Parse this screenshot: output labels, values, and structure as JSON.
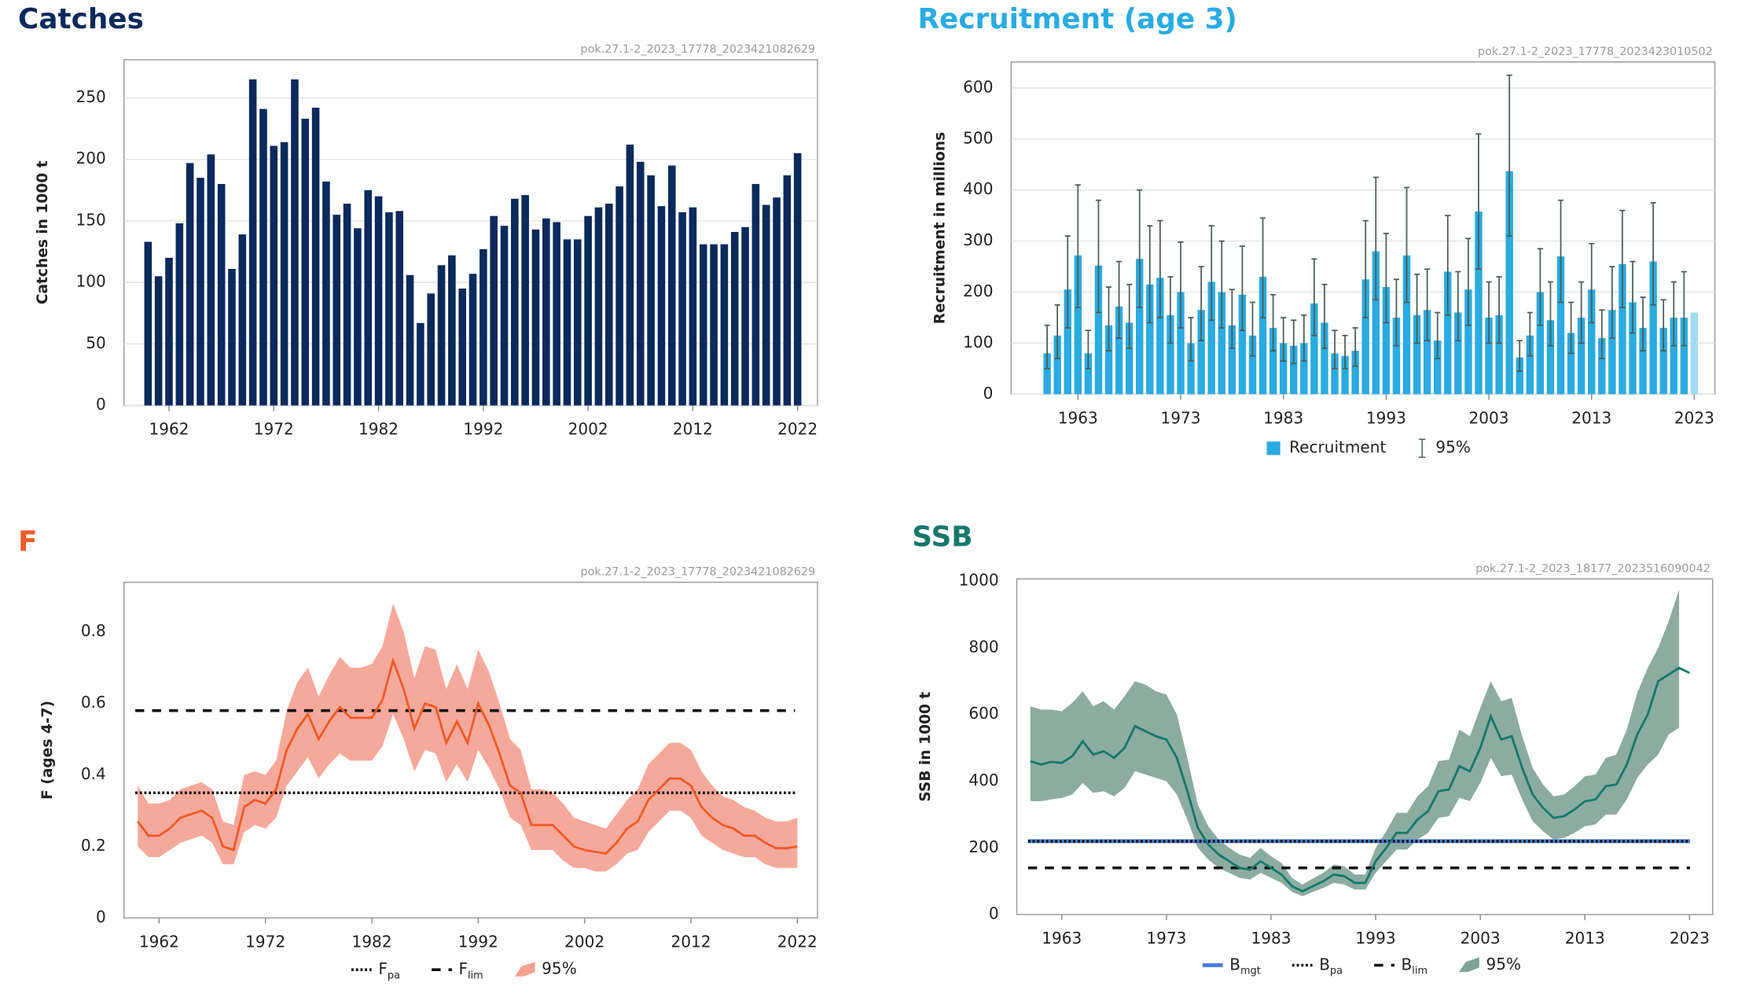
{
  "chart_data": [
    {
      "type": "bar",
      "title": "Catches",
      "title_color": "#0b2a5c",
      "subtitle": "pok.27.1-2_2023_17778_2023421082629",
      "ylabel": "Catches in 1000 t",
      "color": "#0b2a5c",
      "grid": true,
      "x": [
        1960,
        1961,
        1962,
        1963,
        1964,
        1965,
        1966,
        1967,
        1968,
        1969,
        1970,
        1971,
        1972,
        1973,
        1974,
        1975,
        1976,
        1977,
        1978,
        1979,
        1980,
        1981,
        1982,
        1983,
        1984,
        1985,
        1986,
        1987,
        1988,
        1989,
        1990,
        1991,
        1992,
        1993,
        1994,
        1995,
        1996,
        1997,
        1998,
        1999,
        2000,
        2001,
        2002,
        2003,
        2004,
        2005,
        2006,
        2007,
        2008,
        2009,
        2010,
        2011,
        2012,
        2013,
        2014,
        2015,
        2016,
        2017,
        2018,
        2019,
        2020,
        2021,
        2022
      ],
      "values": [
        133,
        105,
        120,
        148,
        197,
        185,
        204,
        180,
        111,
        139,
        265,
        241,
        211,
        214,
        265,
        233,
        242,
        182,
        155,
        164,
        144,
        175,
        170,
        157,
        158,
        106,
        67,
        91,
        114,
        122,
        95,
        107,
        127,
        154,
        146,
        168,
        171,
        143,
        152,
        149,
        135,
        135,
        154,
        161,
        164,
        178,
        212,
        198,
        187,
        162,
        195,
        157,
        161,
        131,
        131,
        131,
        141,
        145,
        180,
        163,
        169,
        187,
        205
      ],
      "xlim": [
        1957.7,
        2023.9
      ],
      "xticks": [
        1962,
        1972,
        1982,
        1992,
        2002,
        2012,
        2022
      ],
      "ylim": [
        0,
        281
      ],
      "yticks": [
        0,
        50,
        100,
        150,
        200,
        250
      ]
    },
    {
      "type": "bar",
      "title": "Recruitment (age 3)",
      "title_color": "#2aabe2",
      "subtitle": "pok.27.1-2_2023_17778_2023423010502",
      "ylabel": "Recruitment in millions",
      "color": "#2aabe2",
      "forecast_color": "#a3daf3",
      "error_color": "#4a5a52",
      "grid": true,
      "value_name": "Recruitment",
      "error_name": "95%",
      "x": [
        1960,
        1961,
        1962,
        1963,
        1964,
        1965,
        1966,
        1967,
        1968,
        1969,
        1970,
        1971,
        1972,
        1973,
        1974,
        1975,
        1976,
        1977,
        1978,
        1979,
        1980,
        1981,
        1982,
        1983,
        1984,
        1985,
        1986,
        1987,
        1988,
        1989,
        1990,
        1991,
        1992,
        1993,
        1994,
        1995,
        1996,
        1997,
        1998,
        1999,
        2000,
        2001,
        2002,
        2003,
        2004,
        2005,
        2006,
        2007,
        2008,
        2009,
        2010,
        2011,
        2012,
        2013,
        2014,
        2015,
        2016,
        2017,
        2018,
        2019,
        2020,
        2021,
        2022,
        2023
      ],
      "values": [
        80,
        115,
        205,
        272,
        80,
        252,
        135,
        172,
        140,
        265,
        215,
        228,
        155,
        200,
        100,
        165,
        220,
        200,
        135,
        195,
        115,
        230,
        130,
        100,
        95,
        100,
        178,
        140,
        80,
        75,
        85,
        225,
        280,
        210,
        150,
        272,
        155,
        165,
        105,
        240,
        160,
        205,
        358,
        150,
        155,
        437,
        72,
        115,
        200,
        145,
        270,
        120,
        150,
        205,
        110,
        165,
        255,
        180,
        130,
        260,
        130,
        150,
        150,
        160
      ],
      "lower": [
        50,
        70,
        130,
        170,
        50,
        160,
        85,
        110,
        90,
        170,
        140,
        150,
        100,
        130,
        65,
        105,
        145,
        130,
        90,
        125,
        75,
        150,
        85,
        65,
        60,
        65,
        115,
        90,
        50,
        50,
        55,
        150,
        185,
        140,
        95,
        180,
        100,
        105,
        70,
        155,
        105,
        135,
        245,
        100,
        100,
        310,
        45,
        75,
        135,
        95,
        180,
        80,
        100,
        140,
        70,
        110,
        170,
        120,
        85,
        175,
        85,
        95,
        95,
        null
      ],
      "upper": [
        135,
        175,
        310,
        410,
        125,
        380,
        210,
        260,
        215,
        400,
        330,
        340,
        230,
        298,
        150,
        250,
        330,
        300,
        205,
        290,
        180,
        345,
        195,
        150,
        145,
        155,
        265,
        215,
        125,
        115,
        130,
        340,
        425,
        315,
        225,
        405,
        235,
        245,
        160,
        350,
        240,
        305,
        510,
        220,
        230,
        625,
        105,
        160,
        285,
        220,
        380,
        180,
        220,
        295,
        165,
        250,
        360,
        260,
        190,
        375,
        185,
        220,
        240,
        null
      ],
      "xlim": [
        1956.5,
        2025
      ],
      "xticks": [
        1963,
        1973,
        1983,
        1993,
        2003,
        2013,
        2023
      ],
      "ylim": [
        0,
        651
      ],
      "yticks": [
        0,
        100,
        200,
        300,
        400,
        500,
        600
      ]
    },
    {
      "type": "line",
      "title": "F",
      "title_color": "#f05a28",
      "subtitle": "pok.27.1-2_2023_17778_2023421082629",
      "ylabel": "F (ages 4-7)",
      "color": "#f05a28",
      "band_color": "#f4a090",
      "band_name": "95%",
      "grid": false,
      "x": [
        1960,
        1961,
        1962,
        1963,
        1964,
        1965,
        1966,
        1967,
        1968,
        1969,
        1970,
        1971,
        1972,
        1973,
        1974,
        1975,
        1976,
        1977,
        1978,
        1979,
        1980,
        1981,
        1982,
        1983,
        1984,
        1985,
        1986,
        1987,
        1988,
        1989,
        1990,
        1991,
        1992,
        1993,
        1994,
        1995,
        1996,
        1997,
        1998,
        1999,
        2000,
        2001,
        2002,
        2003,
        2004,
        2005,
        2006,
        2007,
        2008,
        2009,
        2010,
        2011,
        2012,
        2013,
        2014,
        2015,
        2016,
        2017,
        2018,
        2019,
        2020,
        2021,
        2022
      ],
      "values": [
        0.27,
        0.23,
        0.23,
        0.25,
        0.28,
        0.29,
        0.3,
        0.28,
        0.2,
        0.19,
        0.31,
        0.33,
        0.32,
        0.36,
        0.47,
        0.53,
        0.57,
        0.5,
        0.55,
        0.59,
        0.56,
        0.56,
        0.56,
        0.61,
        0.72,
        0.64,
        0.53,
        0.6,
        0.59,
        0.49,
        0.55,
        0.49,
        0.6,
        0.54,
        0.46,
        0.37,
        0.35,
        0.26,
        0.26,
        0.26,
        0.23,
        0.2,
        0.19,
        0.185,
        0.18,
        0.21,
        0.25,
        0.27,
        0.33,
        0.36,
        0.39,
        0.39,
        0.37,
        0.31,
        0.28,
        0.26,
        0.25,
        0.23,
        0.23,
        0.21,
        0.195,
        0.195,
        0.2
      ],
      "lower": [
        0.2,
        0.17,
        0.17,
        0.19,
        0.21,
        0.22,
        0.23,
        0.21,
        0.15,
        0.15,
        0.24,
        0.26,
        0.25,
        0.28,
        0.37,
        0.41,
        0.45,
        0.39,
        0.43,
        0.46,
        0.44,
        0.44,
        0.44,
        0.48,
        0.57,
        0.5,
        0.41,
        0.47,
        0.46,
        0.38,
        0.43,
        0.38,
        0.47,
        0.42,
        0.36,
        0.28,
        0.26,
        0.19,
        0.19,
        0.19,
        0.16,
        0.14,
        0.14,
        0.13,
        0.13,
        0.15,
        0.18,
        0.19,
        0.24,
        0.27,
        0.3,
        0.3,
        0.28,
        0.23,
        0.21,
        0.19,
        0.18,
        0.17,
        0.17,
        0.15,
        0.14,
        0.14,
        0.14
      ],
      "upper": [
        0.37,
        0.32,
        0.32,
        0.33,
        0.36,
        0.37,
        0.38,
        0.36,
        0.27,
        0.26,
        0.4,
        0.41,
        0.4,
        0.44,
        0.58,
        0.66,
        0.7,
        0.62,
        0.68,
        0.73,
        0.7,
        0.7,
        0.71,
        0.76,
        0.88,
        0.8,
        0.67,
        0.76,
        0.75,
        0.64,
        0.71,
        0.64,
        0.75,
        0.69,
        0.6,
        0.5,
        0.47,
        0.36,
        0.36,
        0.35,
        0.32,
        0.28,
        0.27,
        0.26,
        0.25,
        0.29,
        0.33,
        0.36,
        0.43,
        0.46,
        0.49,
        0.49,
        0.47,
        0.41,
        0.37,
        0.34,
        0.33,
        0.31,
        0.3,
        0.28,
        0.27,
        0.27,
        0.28
      ],
      "reference_lines": [
        {
          "name": "F",
          "sub": "pa",
          "value": 0.35,
          "color": "#111111",
          "style": "dotted"
        },
        {
          "name": "F",
          "sub": "lim",
          "value": 0.58,
          "color": "#111111",
          "style": "dashed"
        }
      ],
      "xlim": [
        1958.7,
        2023.9
      ],
      "xticks": [
        1962,
        1972,
        1982,
        1992,
        2002,
        2012,
        2022
      ],
      "ylim": [
        0,
        0.939
      ],
      "yticks": [
        0,
        0.2,
        0.4,
        0.6,
        0.8
      ]
    },
    {
      "type": "line",
      "title": "SSB",
      "title_color": "#17786a",
      "subtitle": "pok.27.1-2_2023_18177_2023516090042",
      "ylabel": "SSB in 1000 t",
      "color": "#17786a",
      "band_color": "#7fa396",
      "band_name": "95%",
      "grid": false,
      "x": [
        1960,
        1961,
        1962,
        1963,
        1964,
        1965,
        1966,
        1967,
        1968,
        1969,
        1970,
        1971,
        1972,
        1973,
        1974,
        1975,
        1976,
        1977,
        1978,
        1979,
        1980,
        1981,
        1982,
        1983,
        1984,
        1985,
        1986,
        1987,
        1988,
        1989,
        1990,
        1991,
        1992,
        1993,
        1994,
        1995,
        1996,
        1997,
        1998,
        1999,
        2000,
        2001,
        2002,
        2003,
        2004,
        2005,
        2006,
        2007,
        2008,
        2009,
        2010,
        2011,
        2012,
        2013,
        2014,
        2015,
        2016,
        2017,
        2018,
        2019,
        2020,
        2021,
        2022,
        2023
      ],
      "values": [
        460,
        450,
        458,
        455,
        475,
        520,
        480,
        490,
        470,
        500,
        565,
        550,
        535,
        525,
        470,
        370,
        260,
        210,
        180,
        160,
        140,
        135,
        160,
        140,
        120,
        85,
        70,
        85,
        100,
        120,
        115,
        95,
        95,
        160,
        200,
        245,
        245,
        285,
        310,
        370,
        375,
        445,
        430,
        500,
        595,
        525,
        535,
        440,
        360,
        320,
        290,
        295,
        315,
        340,
        345,
        385,
        390,
        450,
        540,
        600,
        700,
        720,
        740,
        725
      ],
      "lower": [
        340,
        340,
        345,
        350,
        360,
        395,
        365,
        370,
        355,
        380,
        430,
        420,
        410,
        400,
        360,
        285,
        200,
        165,
        140,
        125,
        110,
        105,
        125,
        110,
        95,
        68,
        55,
        68,
        80,
        95,
        90,
        75,
        75,
        125,
        160,
        195,
        195,
        225,
        245,
        290,
        295,
        350,
        340,
        395,
        470,
        415,
        420,
        345,
        280,
        250,
        225,
        230,
        245,
        265,
        270,
        300,
        300,
        345,
        410,
        450,
        480,
        540,
        560,
        null
      ],
      "upper": [
        625,
        615,
        615,
        610,
        635,
        670,
        625,
        640,
        615,
        655,
        700,
        690,
        670,
        660,
        600,
        470,
        330,
        265,
        225,
        200,
        180,
        170,
        200,
        175,
        155,
        110,
        90,
        108,
        125,
        150,
        145,
        120,
        120,
        200,
        250,
        305,
        305,
        355,
        385,
        460,
        465,
        555,
        535,
        620,
        700,
        640,
        650,
        535,
        440,
        390,
        355,
        360,
        385,
        415,
        420,
        470,
        480,
        555,
        665,
        740,
        800,
        880,
        975,
        null
      ],
      "reference_lines": [
        {
          "name": "B",
          "sub": "mgt",
          "value": 220,
          "color": "#4a7fd8",
          "style": "solid"
        },
        {
          "name": "B",
          "sub": "pa",
          "value": 220,
          "color": "#111111",
          "style": "dotted"
        },
        {
          "name": "B",
          "sub": "lim",
          "value": 140,
          "color": "#111111",
          "style": "dashed"
        }
      ],
      "xlim": [
        1958.7,
        2025.2
      ],
      "xticks": [
        1963,
        1973,
        1983,
        1993,
        2003,
        2013,
        2023
      ],
      "ylim": [
        0,
        1007
      ],
      "yticks": [
        0,
        200,
        400,
        600,
        800,
        1000
      ]
    }
  ]
}
